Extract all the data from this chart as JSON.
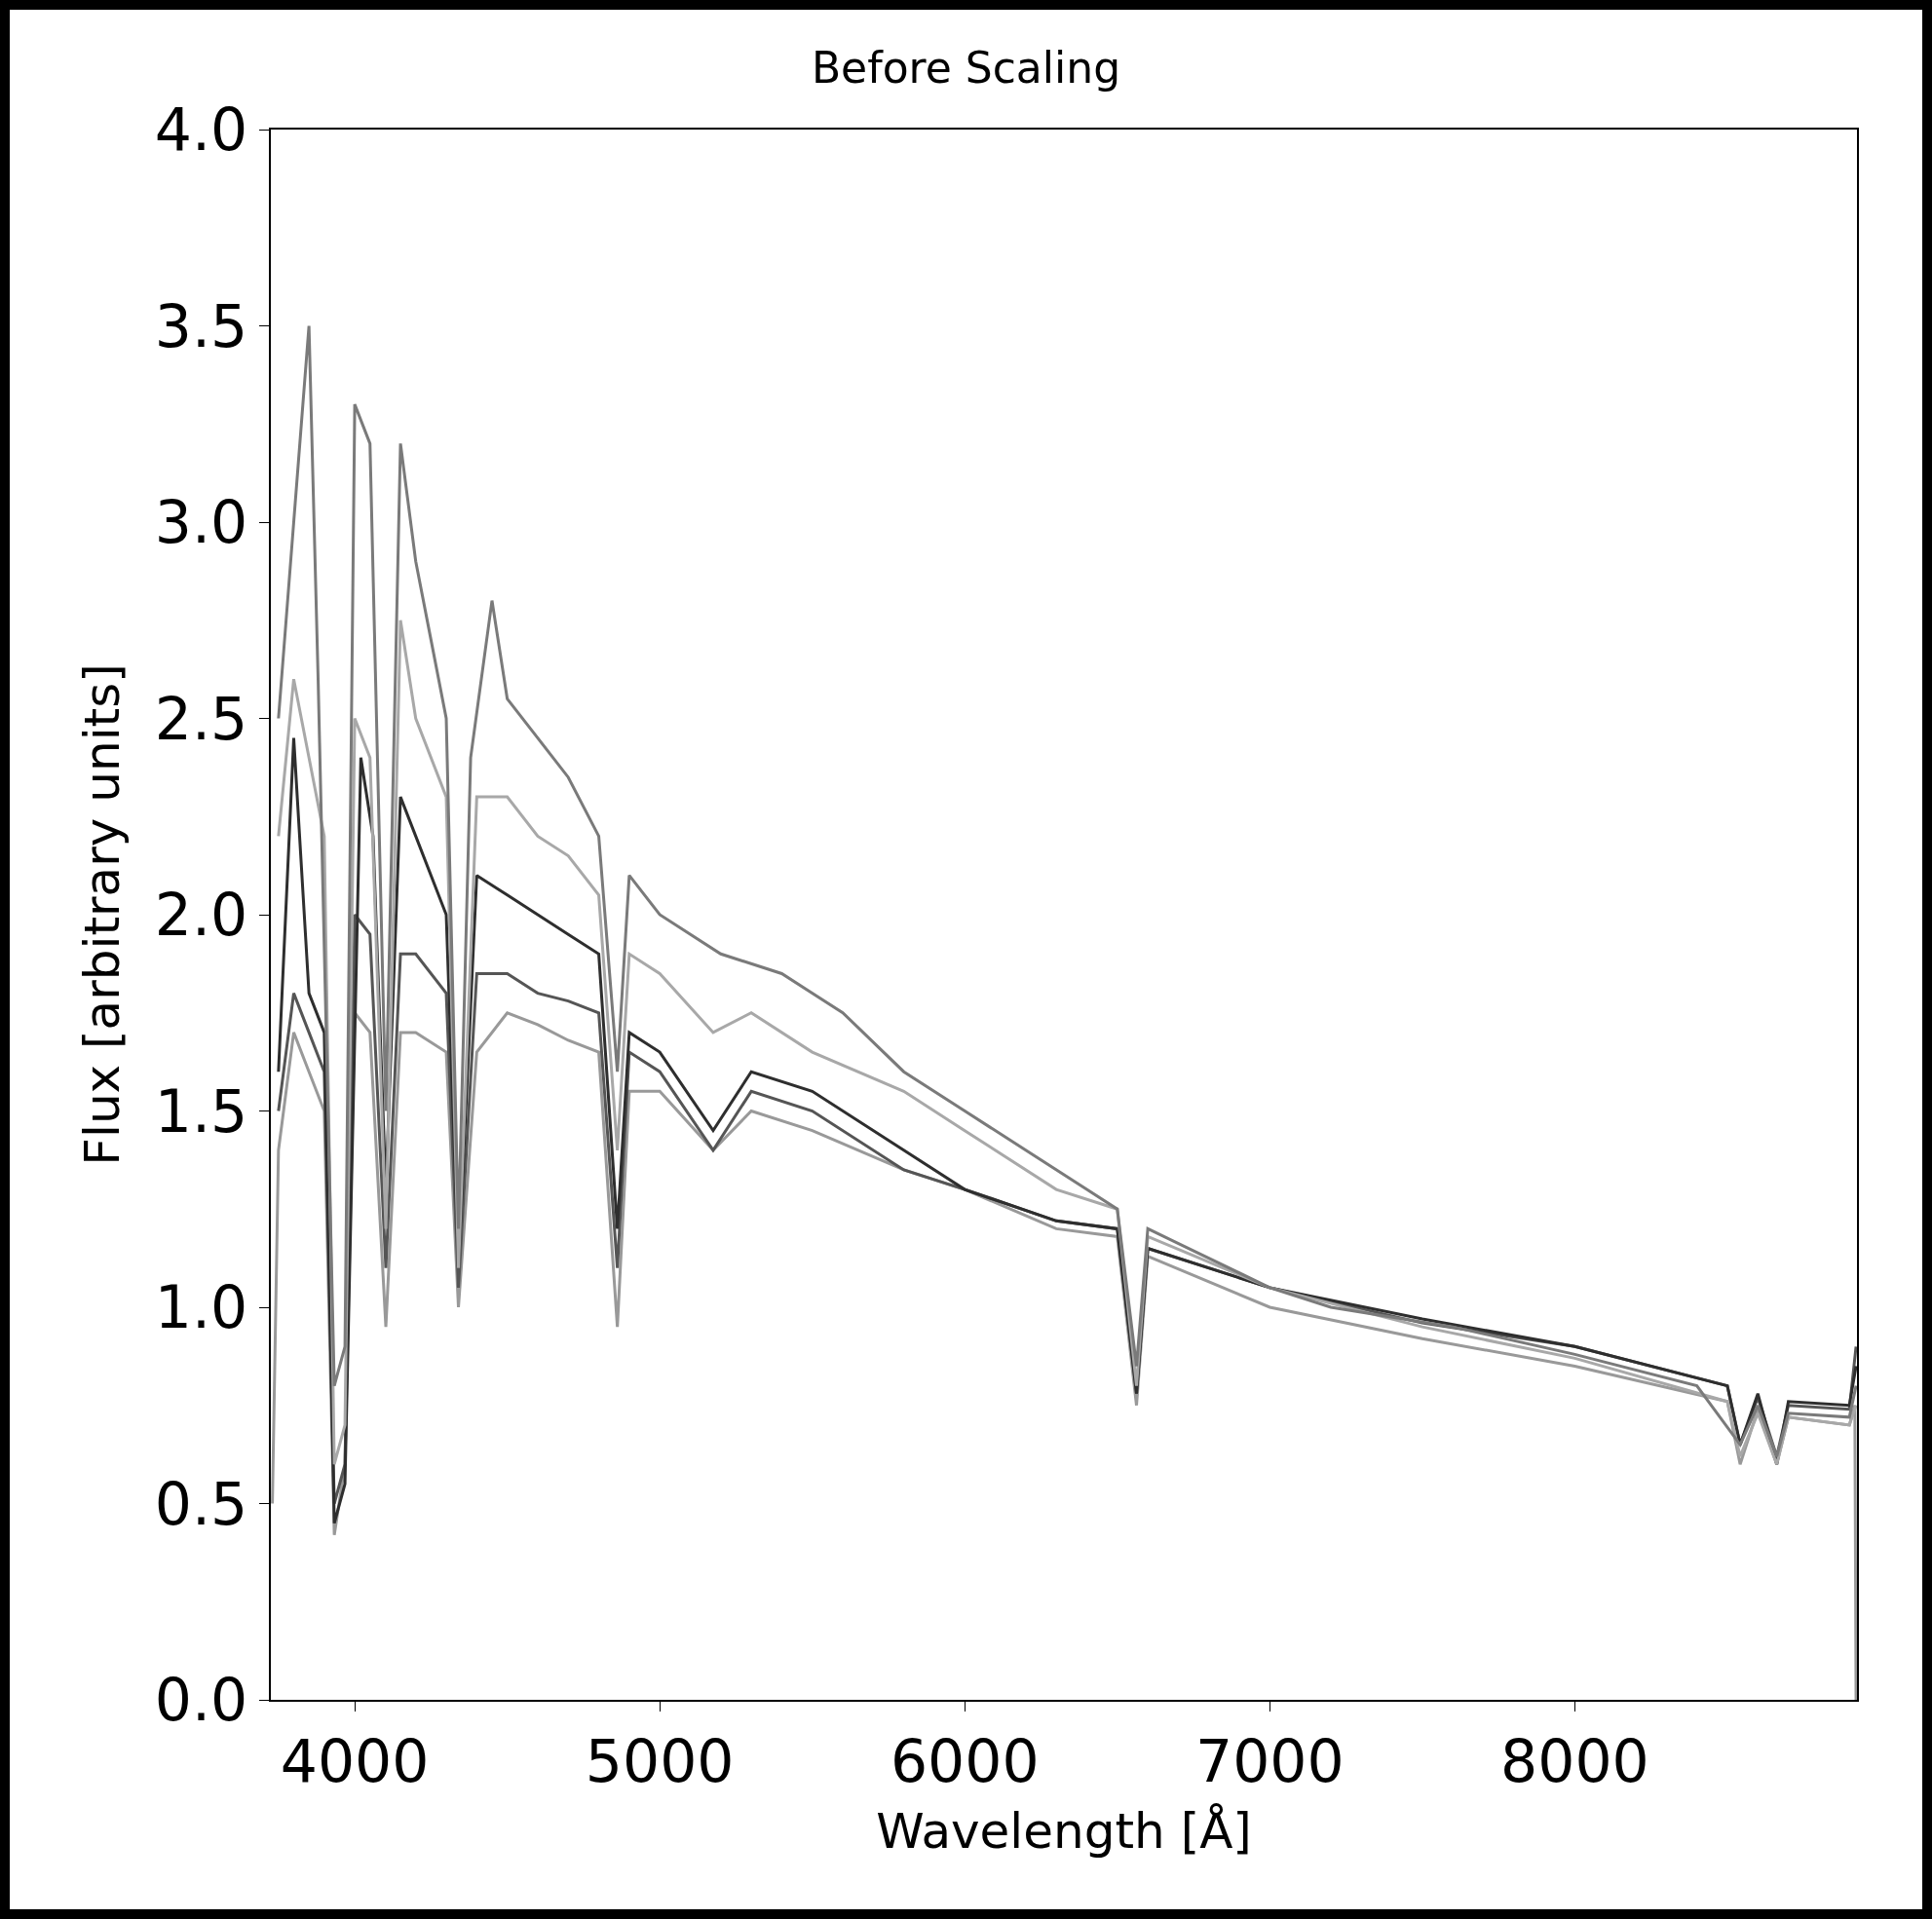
{
  "chart_data": {
    "type": "line",
    "title": "Before Scaling",
    "xlabel": "Wavelength [Å]",
    "ylabel": "Flux [arbitrary units]",
    "xlim": [
      3725,
      8925
    ],
    "ylim": [
      0,
      4.0
    ],
    "xticks": [
      4000,
      5000,
      6000,
      7000,
      8000
    ],
    "yticks": [
      {
        "value": 0,
        "label": "0.0"
      },
      {
        "value": 0.5,
        "label": "0.5"
      },
      {
        "value": 1,
        "label": "1.0"
      },
      {
        "value": 1.5,
        "label": "1.5"
      },
      {
        "value": 2,
        "label": "2.0"
      },
      {
        "value": 2.5,
        "label": "2.5"
      },
      {
        "value": 3,
        "label": "3.0"
      },
      {
        "value": 3.5,
        "label": "3.5"
      },
      {
        "value": 4,
        "label": "4.0"
      }
    ],
    "grid": false,
    "marker": "none",
    "line_style": "solid",
    "series": [
      {
        "color": "#999999",
        "x": [
          3730,
          3750,
          3800,
          3850,
          3900,
          3933,
          3968,
          4000,
          4050,
          4102,
          4150,
          4200,
          4300,
          4340,
          4400,
          4500,
          4600,
          4700,
          4800,
          4861,
          4900,
          5000,
          5175,
          5300,
          5500,
          5800,
          6000,
          6300,
          6500,
          6563,
          6600,
          7000,
          7500,
          8000,
          8500,
          8542,
          8600,
          8662,
          8700,
          8900,
          8918,
          8922
        ],
        "values": [
          0.5,
          1.4,
          1.7,
          1.6,
          1.5,
          0.42,
          0.6,
          1.75,
          1.7,
          0.95,
          1.7,
          1.7,
          1.65,
          1.0,
          1.65,
          1.75,
          1.72,
          1.68,
          1.65,
          0.95,
          1.55,
          1.55,
          1.4,
          1.5,
          1.45,
          1.35,
          1.3,
          1.2,
          1.18,
          0.75,
          1.13,
          1.0,
          0.92,
          0.85,
          0.76,
          0.6,
          0.74,
          0.6,
          0.72,
          0.7,
          0.75,
          0.0
        ]
      },
      {
        "color": "#555555",
        "x": [
          3750,
          3800,
          3850,
          3900,
          3933,
          3968,
          4000,
          4050,
          4102,
          4150,
          4200,
          4300,
          4340,
          4400,
          4500,
          4600,
          4700,
          4800,
          4861,
          4900,
          5000,
          5175,
          5300,
          5500,
          5800,
          6000,
          6300,
          6500,
          6563,
          6600,
          7000,
          7500,
          8000,
          8500,
          8542,
          8600,
          8662,
          8700,
          8900,
          8922
        ],
        "values": [
          1.5,
          1.8,
          1.7,
          1.6,
          0.5,
          0.6,
          2.0,
          1.95,
          1.1,
          1.9,
          1.9,
          1.8,
          1.05,
          1.85,
          1.85,
          1.8,
          1.78,
          1.75,
          1.1,
          1.65,
          1.6,
          1.4,
          1.55,
          1.5,
          1.35,
          1.3,
          1.22,
          1.2,
          0.78,
          1.15,
          1.05,
          0.96,
          0.9,
          0.8,
          0.65,
          0.77,
          0.62,
          0.75,
          0.74,
          0.9
        ]
      },
      {
        "color": "#2e2e2e",
        "x": [
          3750,
          3800,
          3850,
          3900,
          3933,
          3968,
          4020,
          4060,
          4102,
          4150,
          4200,
          4300,
          4340,
          4400,
          4500,
          4600,
          4700,
          4800,
          4861,
          4900,
          5000,
          5175,
          5300,
          5500,
          5800,
          6000,
          6300,
          6500,
          6563,
          6600,
          7000,
          7500,
          8000,
          8500,
          8542,
          8600,
          8662,
          8700,
          8900,
          8922
        ],
        "values": [
          1.6,
          2.45,
          1.8,
          1.7,
          0.45,
          0.55,
          2.4,
          2.2,
          1.3,
          2.3,
          2.2,
          2.0,
          1.1,
          2.1,
          2.05,
          2.0,
          1.95,
          1.9,
          1.2,
          1.7,
          1.65,
          1.45,
          1.6,
          1.55,
          1.4,
          1.3,
          1.22,
          1.2,
          0.78,
          1.15,
          1.05,
          0.97,
          0.9,
          0.8,
          0.65,
          0.78,
          0.6,
          0.76,
          0.75,
          0.85
        ]
      },
      {
        "color": "#a8a8a8",
        "x": [
          3750,
          3800,
          3850,
          3900,
          3933,
          3968,
          4000,
          4050,
          4102,
          4150,
          4200,
          4300,
          4340,
          4400,
          4500,
          4600,
          4700,
          4800,
          4861,
          4900,
          5000,
          5175,
          5300,
          5500,
          5800,
          6000,
          6300,
          6500,
          6563,
          6600,
          7000,
          7500,
          8000,
          8500,
          8542,
          8600,
          8662,
          8700,
          8900,
          8922
        ],
        "values": [
          2.2,
          2.6,
          2.4,
          2.2,
          0.6,
          0.7,
          2.5,
          2.4,
          1.2,
          2.75,
          2.5,
          2.3,
          1.1,
          2.3,
          2.3,
          2.2,
          2.15,
          2.05,
          1.4,
          1.9,
          1.85,
          1.7,
          1.75,
          1.65,
          1.55,
          1.45,
          1.3,
          1.25,
          0.8,
          1.18,
          1.05,
          0.95,
          0.87,
          0.76,
          0.62,
          0.73,
          0.6,
          0.72,
          0.7,
          0.75
        ]
      },
      {
        "color": "#7a7a7a",
        "x": [
          3750,
          3800,
          3850,
          3880,
          3933,
          3968,
          4000,
          4050,
          4102,
          4150,
          4200,
          4250,
          4300,
          4340,
          4380,
          4450,
          4500,
          4600,
          4700,
          4800,
          4861,
          4900,
          5000,
          5200,
          5400,
          5600,
          5800,
          6000,
          6200,
          6400,
          6500,
          6563,
          6600,
          7000,
          7200,
          7600,
          8000,
          8400,
          8542,
          8600,
          8662,
          8700,
          8900,
          8922
        ],
        "values": [
          2.5,
          3.0,
          3.5,
          2.6,
          0.8,
          0.9,
          3.3,
          3.2,
          1.5,
          3.2,
          2.9,
          2.7,
          2.5,
          1.2,
          2.4,
          2.8,
          2.55,
          2.45,
          2.35,
          2.2,
          1.6,
          2.1,
          2.0,
          1.9,
          1.85,
          1.75,
          1.6,
          1.5,
          1.4,
          1.3,
          1.25,
          0.85,
          1.2,
          1.05,
          1.0,
          0.95,
          0.88,
          0.8,
          0.65,
          0.75,
          0.62,
          0.73,
          0.72,
          0.8
        ]
      }
    ]
  }
}
